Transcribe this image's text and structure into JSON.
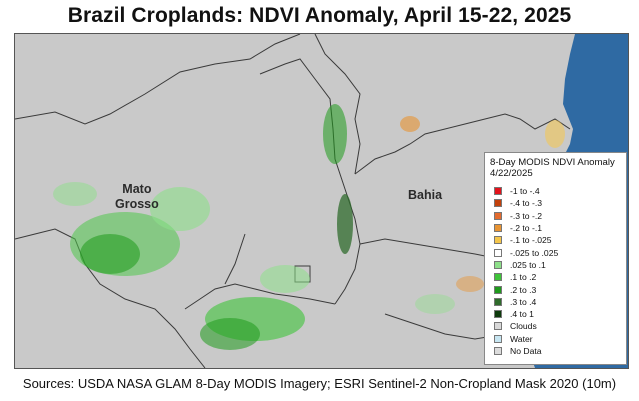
{
  "title": "Brazil Croplands:  NDVI Anomaly, April 15-22, 2025",
  "map_labels": {
    "mato_grosso": "Mato\nGrosso",
    "bahia": "Bahia"
  },
  "legend": {
    "title": "8-Day MODIS NDVI Anomaly",
    "date": "4/22/2025",
    "items": [
      {
        "label": "-1 to -.4",
        "color": "#e3121b"
      },
      {
        "label": "-.4 to -.3",
        "color": "#c2410c"
      },
      {
        "label": "-.3 to -.2",
        "color": "#e36b2e"
      },
      {
        "label": "-.2 to -.1",
        "color": "#e89433"
      },
      {
        "label": "-.1 to -.025",
        "color": "#f5c64a"
      },
      {
        "label": "-.025 to .025",
        "color": "#ffffff"
      },
      {
        "label": ".025 to .1",
        "color": "#8ee08a"
      },
      {
        "label": ".1 to .2",
        "color": "#3fc43a"
      },
      {
        "label": ".2 to .3",
        "color": "#1f9a1c"
      },
      {
        "label": ".3 to .4",
        "color": "#2f6b2c"
      },
      {
        "label": ".4 to 1",
        "color": "#0d3a0c"
      },
      {
        "label": "Clouds",
        "color": "#d9d9d9"
      },
      {
        "label": "Water",
        "color": "#c7e6f2"
      },
      {
        "label": "No Data",
        "color": "#dcdcdc"
      }
    ]
  },
  "colors": {
    "ocean": "#2f6aa3",
    "land": "#c9c9c9",
    "border": "#3a3a3a"
  },
  "sources": "Sources: USDA NASA GLAM 8-Day MODIS Imagery; ESRI Sentinel-2 Non-Cropland Mask 2020 (10m)"
}
